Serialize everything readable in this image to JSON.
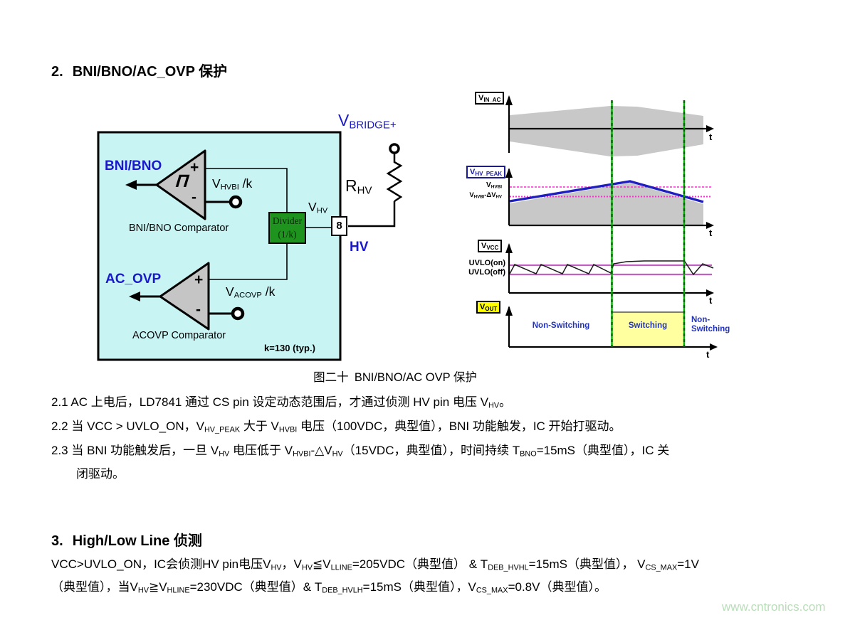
{
  "colors": {
    "accent_blue": "#1a1acc",
    "ic_body_cyan": "#c9f4f4",
    "comparator_gray": "#c5c5c5",
    "divider_green": "#1e941e",
    "signal_blue": "#1f1fbf",
    "threshold_magenta": "#ff2ad4",
    "uvlo_violet": "#c060c0",
    "marker_green": "#00a000",
    "envelope_gray": "#c8c8c8",
    "switching_yellow": "#ffffa0",
    "watermark_green": "#b9dcb9"
  },
  "section2": {
    "number": "2.",
    "title": "BNI/BNO/AC_OVP 保护"
  },
  "circuit": {
    "bni_bno_output": "BNI/BNO",
    "bni_comparator_caption": "BNI/BNO Comparator",
    "ac_ovp_output": "AC_OVP",
    "acovp_comparator_caption": "ACOVP Comparator",
    "plus": "+",
    "minus": "-",
    "hysteresis_glyph": "Π",
    "vhvbi_over_k": [
      {
        "t": "V"
      },
      {
        "s": "HVBI"
      },
      {
        "t": " /k"
      }
    ],
    "vacovp_over_k": [
      {
        "t": "V"
      },
      {
        "s": "ACOVP"
      },
      {
        "t": " /k"
      }
    ],
    "divider_line1": "Divider",
    "divider_line2": "(1/k)",
    "vhv": [
      {
        "t": "V"
      },
      {
        "s": "HV"
      }
    ],
    "pin_number": "8",
    "hv_pin_name": "HV",
    "rhv": [
      {
        "t": "R"
      },
      {
        "s": "HV"
      }
    ],
    "vbridge": [
      {
        "t": "V"
      },
      {
        "s": "BRIDGE+"
      }
    ],
    "k_note": "k=130 (typ.)"
  },
  "waveforms": {
    "w1_label": [
      {
        "t": "V"
      },
      {
        "s": "IN_AC"
      }
    ],
    "w2_label": [
      {
        "t": "V"
      },
      {
        "s": "HV_PEAK"
      }
    ],
    "w3_label": [
      {
        "t": "V"
      },
      {
        "s": "VCC"
      }
    ],
    "w4_label": [
      {
        "t": "V"
      },
      {
        "s": "OUT"
      }
    ],
    "vhvbi_threshold": [
      {
        "t": "V"
      },
      {
        "s": "HVBI"
      }
    ],
    "vhvbi_delta_threshold": [
      {
        "t": "V"
      },
      {
        "s": "HVBI"
      },
      {
        "t": "-ΔV"
      },
      {
        "s": "HV"
      }
    ],
    "uvlo_on": "UVLO(on)",
    "uvlo_off": "UVLO(off)",
    "t_axis": "t",
    "non_switching_left": "Non-Switching",
    "switching": "Switching",
    "non_switching_right": "Non-\nSwitching"
  },
  "figure_caption": "图二十 BNI/BNO/AC OVP 保护",
  "paragraphs": {
    "p21": [
      {
        "t": "2.1 AC 上电后，LD7841 通过 CS pin 设定动态范围后，才通过侦测 HV pin 电压 V"
      },
      {
        "s": "HV"
      },
      {
        "t": "。"
      }
    ],
    "p22": [
      {
        "t": "2.2 当 VCC > UVLO_ON，V"
      },
      {
        "s": "HV_PEAK"
      },
      {
        "t": " 大于 V"
      },
      {
        "s": "HVBI"
      },
      {
        "t": " 电压（100VDC，典型值），BNI 功能触发，IC 开始打驱动。"
      }
    ],
    "p23_line1": [
      {
        "t": "2.3 当 BNI 功能触发后，一旦 V"
      },
      {
        "s": "HV"
      },
      {
        "t": " 电压低于 V"
      },
      {
        "s": "HVBI"
      },
      {
        "t": "-△V"
      },
      {
        "s": "HV"
      },
      {
        "t": "（15VDC，典型值），时间持续 T"
      },
      {
        "s": "BNO"
      },
      {
        "t": "=15mS（典型值），IC 关"
      }
    ],
    "p23_line2": [
      {
        "t": "闭驱动。"
      }
    ],
    "p3_line1": [
      {
        "t": "VCC>UVLO_ON，IC会侦测HV pin电压V"
      },
      {
        "s": "HV"
      },
      {
        "t": "，V"
      },
      {
        "s": "HV"
      },
      {
        "t": "≦V"
      },
      {
        "s": "LLINE"
      },
      {
        "t": "=205VDC（典型值） & T"
      },
      {
        "s": "DEB_HVHL"
      },
      {
        "t": "=15mS（典型值）， V"
      },
      {
        "s": "CS_MAX"
      },
      {
        "t": "=1V"
      }
    ],
    "p3_line2": [
      {
        "t": "（典型值），当V"
      },
      {
        "s": "HV"
      },
      {
        "t": "≧V"
      },
      {
        "s": "HLINE"
      },
      {
        "t": "=230VDC（典型值）& T"
      },
      {
        "s": "DEB_HVLH"
      },
      {
        "t": "=15mS（典型值），V"
      },
      {
        "s": "CS_MAX"
      },
      {
        "t": "=0.8V（典型值）。"
      }
    ]
  },
  "section3": {
    "number": "3.",
    "title": "High/Low Line 侦测"
  },
  "watermark": "www.cntronics.com"
}
